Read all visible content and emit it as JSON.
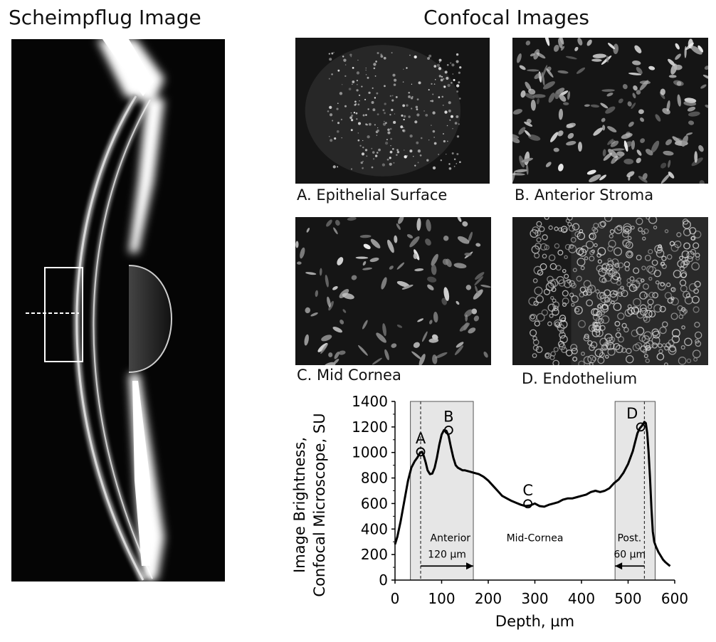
{
  "titles": {
    "left": "Scheimpflug Image",
    "right": "Confocal Images"
  },
  "confocal": [
    {
      "id": "A",
      "caption": "A. Epithelial Surface",
      "texture": "sparse"
    },
    {
      "id": "B",
      "caption": "B. Anterior Stroma",
      "texture": "dense"
    },
    {
      "id": "C",
      "caption": "C. Mid Cornea",
      "texture": "medium"
    },
    {
      "id": "D",
      "caption": "D. Endothelium",
      "texture": "honeycomb"
    }
  ],
  "chart_data": {
    "type": "line",
    "title": "",
    "xlabel": "Depth, µm",
    "ylabel_lines": [
      "Image Brightness,",
      "Confocal Microscope, SU"
    ],
    "xlim": [
      0,
      600
    ],
    "ylim": [
      0,
      1400
    ],
    "xticks": [
      "0",
      "100",
      "200",
      "300",
      "400",
      "500",
      "600"
    ],
    "yticks": [
      "0",
      "200",
      "400",
      "600",
      "800",
      "1000",
      "1200",
      "1400"
    ],
    "series": [
      {
        "x": [
          0,
          5,
          12,
          20,
          28,
          35,
          42,
          48,
          54,
          58,
          62,
          66,
          70,
          75,
          80,
          85,
          90,
          95,
          100,
          105,
          110,
          115,
          120,
          125,
          130,
          135,
          140,
          145,
          150,
          155,
          160,
          170,
          180,
          190,
          200,
          210,
          220,
          230,
          240,
          250,
          260,
          270,
          280,
          290,
          300,
          310,
          320,
          330,
          340,
          350,
          360,
          370,
          380,
          390,
          400,
          410,
          420,
          430,
          440,
          450,
          460,
          470,
          480,
          490,
          500,
          510,
          515,
          520,
          525,
          530,
          535,
          538,
          541,
          544,
          547,
          550,
          553,
          556,
          560,
          565,
          570,
          575,
          580,
          585,
          590
        ],
        "y": [
          280,
          340,
          460,
          620,
          780,
          880,
          930,
          960,
          1000,
          1005,
          970,
          920,
          860,
          830,
          835,
          880,
          960,
          1060,
          1140,
          1175,
          1170,
          1130,
          1040,
          960,
          900,
          880,
          870,
          860,
          860,
          855,
          850,
          840,
          830,
          810,
          780,
          740,
          700,
          660,
          640,
          620,
          605,
          590,
          580,
          585,
          600,
          580,
          575,
          590,
          600,
          610,
          630,
          640,
          640,
          650,
          660,
          670,
          690,
          700,
          690,
          700,
          720,
          760,
          790,
          840,
          910,
          1010,
          1080,
          1150,
          1190,
          1210,
          1240,
          1230,
          1150,
          1000,
          800,
          560,
          380,
          300,
          260,
          220,
          190,
          160,
          140,
          125,
          110
        ]
      }
    ],
    "shaded_regions": [
      {
        "label": "Anterior",
        "x_start": 33,
        "x_end": 168,
        "dashed_at": 55,
        "span_label": "120 µm"
      },
      {
        "label": "Post.",
        "x_start": 472,
        "x_end": 558,
        "dashed_at": 535,
        "span_label": "60 µm"
      }
    ],
    "middle_label": "Mid-Cornea",
    "middle_label_x": 300,
    "markers": [
      {
        "label": "A",
        "x": 55,
        "y": 1005
      },
      {
        "label": "B",
        "x": 115,
        "y": 1175
      },
      {
        "label": "C",
        "x": 285,
        "y": 598
      },
      {
        "label": "D",
        "x": 527,
        "y": 1200
      }
    ]
  }
}
